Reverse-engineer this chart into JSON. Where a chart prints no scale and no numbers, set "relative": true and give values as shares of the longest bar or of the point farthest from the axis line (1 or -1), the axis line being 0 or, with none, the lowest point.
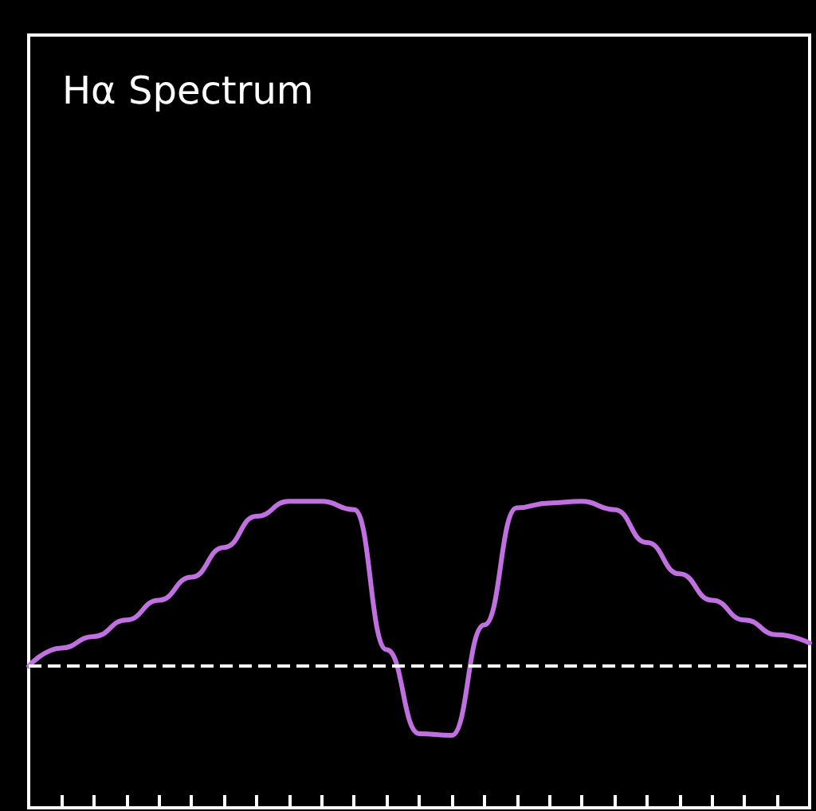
{
  "chart_data": {
    "type": "line",
    "title": "Hα Spectrum",
    "relative": true,
    "tick_labels": false,
    "grid": false,
    "marker": "none",
    "line_style": "solid",
    "categories": [
      null,
      null,
      null,
      null,
      null,
      null,
      null,
      null,
      null,
      null,
      null,
      null,
      null,
      null,
      null,
      null,
      null,
      null,
      null,
      null,
      null,
      null,
      null,
      null,
      null
    ],
    "series": [
      {
        "color": "#c070e0",
        "values": [
          0,
          0.11,
          0.18,
          0.28,
          0.4,
          0.54,
          0.72,
          0.91,
          1.0,
          1.0,
          0.95,
          0.1,
          -0.41,
          -0.42,
          0.25,
          0.96,
          0.99,
          1.0,
          0.95,
          0.75,
          0.56,
          0.4,
          0.28,
          0.19,
          0.14
        ]
      }
    ],
    "ref_lines": [
      {
        "axis": "y",
        "value": 0,
        "color": "#ffffff",
        "line_style": "dashed"
      }
    ]
  }
}
